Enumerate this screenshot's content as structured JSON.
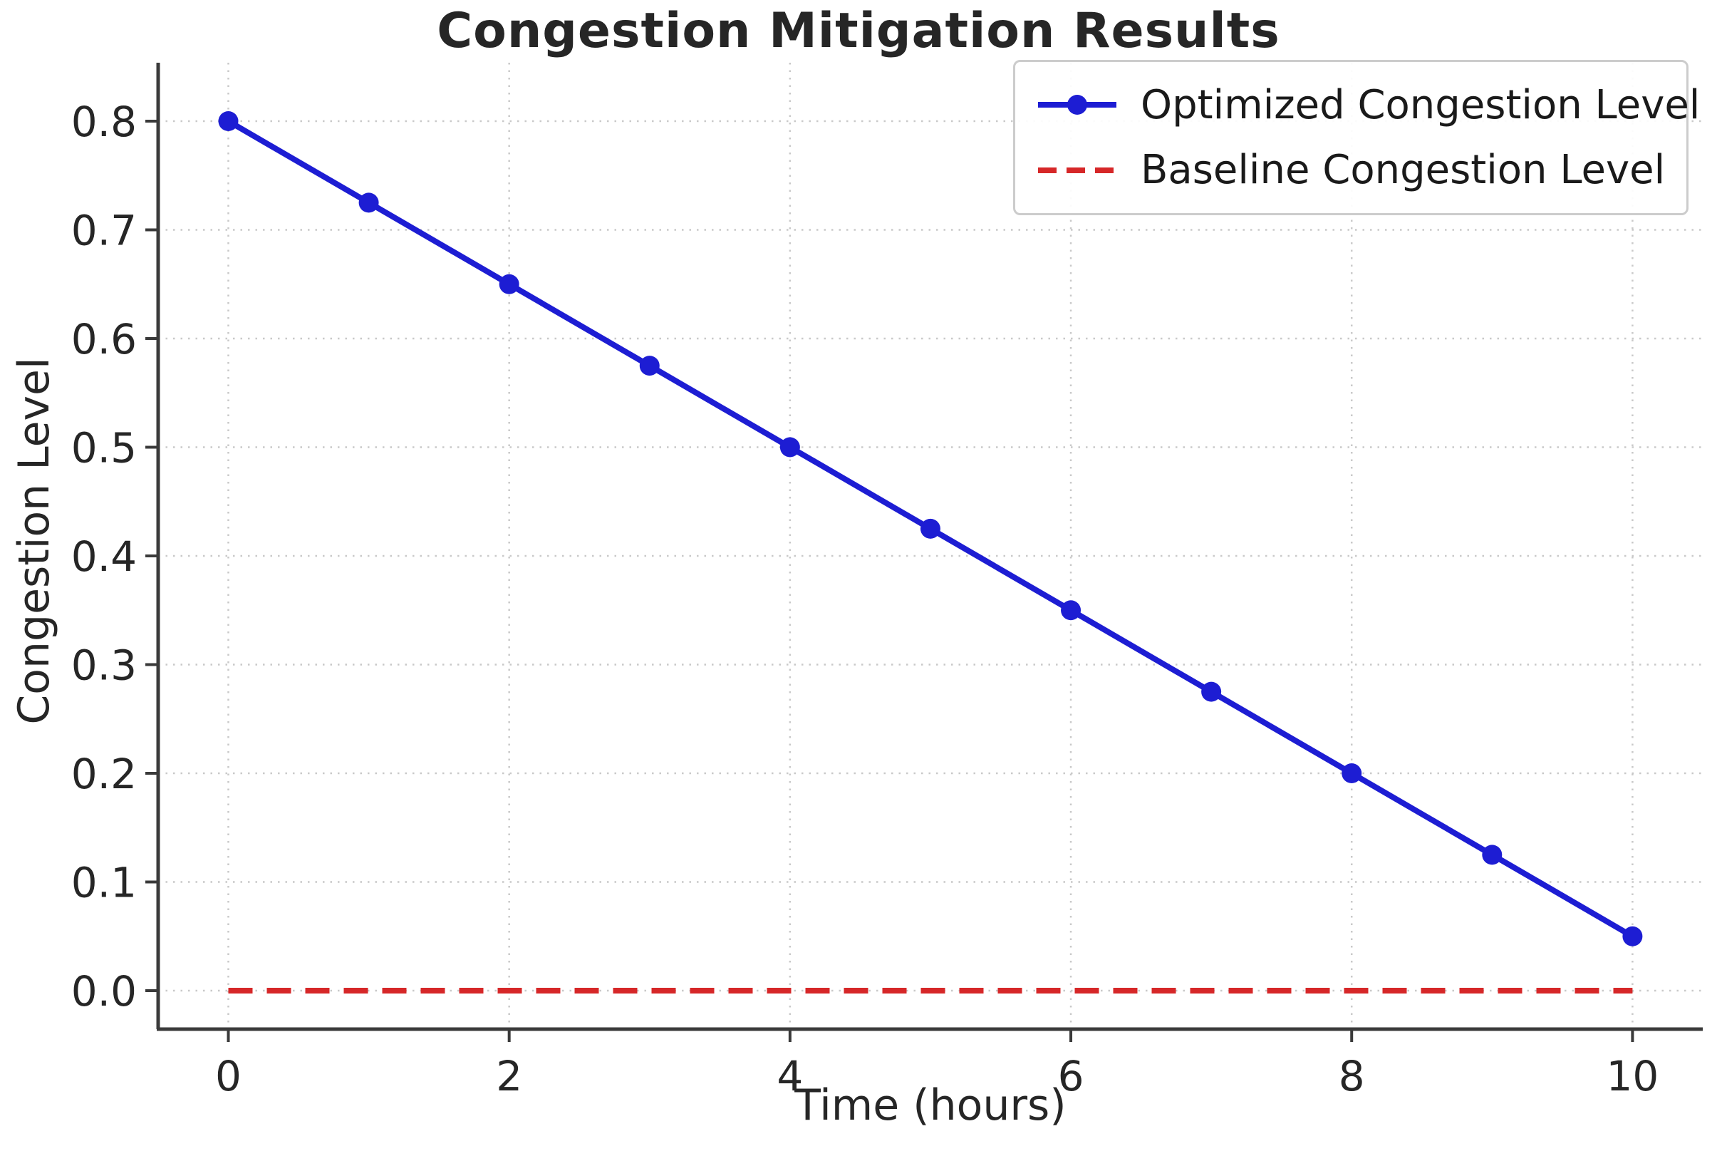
{
  "chart_data": {
    "type": "line",
    "title": "Congestion Mitigation Results",
    "xlabel": "Time (hours)",
    "ylabel": "Congestion Level",
    "x": [
      0,
      1,
      2,
      3,
      4,
      5,
      6,
      7,
      8,
      9,
      10
    ],
    "series": [
      {
        "name": "Optimized Congestion Level",
        "values": [
          0.8,
          0.725,
          0.65,
          0.575,
          0.5,
          0.425,
          0.35,
          0.275,
          0.2,
          0.125,
          0.05
        ],
        "color": "#1d1dd3",
        "style": "solid",
        "marker": "circle"
      },
      {
        "name": "Baseline Congestion Level",
        "values": [
          0.0,
          0.0,
          0.0,
          0.0,
          0.0,
          0.0,
          0.0,
          0.0,
          0.0,
          0.0,
          0.0
        ],
        "color": "#d62728",
        "style": "dashed",
        "marker": "none"
      }
    ],
    "x_ticks": [
      "0",
      "2",
      "4",
      "6",
      "8",
      "10"
    ],
    "x_tick_values": [
      0,
      2,
      4,
      6,
      8,
      10
    ],
    "y_ticks": [
      "0.0",
      "0.1",
      "0.2",
      "0.3",
      "0.4",
      "0.5",
      "0.6",
      "0.7",
      "0.8"
    ],
    "y_tick_values": [
      0.0,
      0.1,
      0.2,
      0.3,
      0.4,
      0.5,
      0.6,
      0.7,
      0.8
    ],
    "xlim": [
      -0.5,
      10.5
    ],
    "ylim": [
      -0.04,
      0.86
    ],
    "grid": true,
    "grid_style": "dotted",
    "legend_position": "upper right",
    "colors": {
      "grid": "#c9c9c9",
      "spine": "#3a3a3a",
      "tick_text": "#262626",
      "background": "#ffffff"
    }
  }
}
